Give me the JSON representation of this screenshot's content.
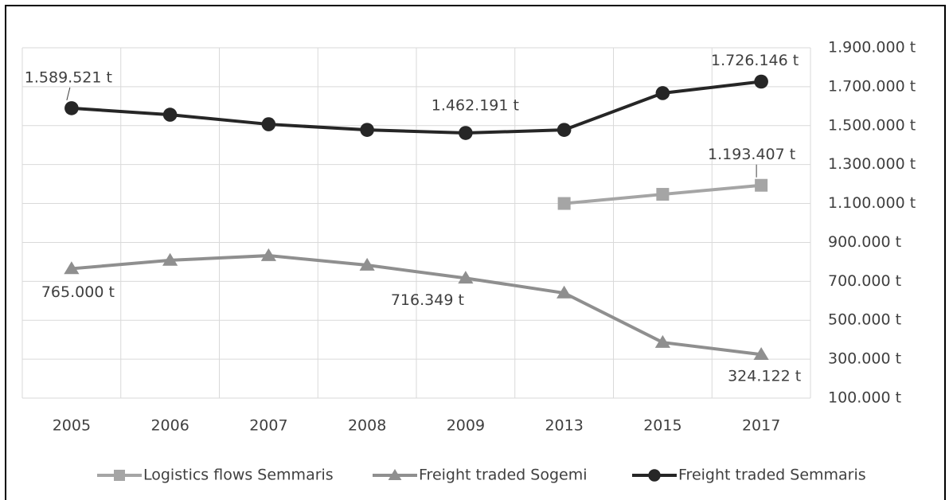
{
  "chart_data": {
    "type": "line",
    "categories": [
      "2005",
      "2006",
      "2007",
      "2008",
      "2009",
      "2013",
      "2015",
      "2017"
    ],
    "series": [
      {
        "name": "Logistics flows Semmaris",
        "color": "#a5a5a5",
        "marker": "square",
        "values": [
          null,
          null,
          null,
          null,
          null,
          1100000,
          1147000,
          1193407
        ],
        "value_labels": [
          null,
          null,
          null,
          null,
          null,
          null,
          null,
          "1.193.407 t"
        ]
      },
      {
        "name": "Freight traded Sogemi",
        "color": "#8f8f8f",
        "marker": "triangle",
        "values": [
          765000,
          808000,
          832000,
          783000,
          716349,
          640000,
          386000,
          324122
        ],
        "value_labels": [
          "765.000 t",
          null,
          null,
          null,
          "716.349 t",
          null,
          null,
          "324.122 t"
        ]
      },
      {
        "name": "Freight traded Semmaris",
        "color": "#262626",
        "marker": "circle",
        "values": [
          1589521,
          1556000,
          1507000,
          1478000,
          1462191,
          1478000,
          1667000,
          1726146
        ],
        "value_labels": [
          "1.589.521 t",
          null,
          null,
          null,
          "1.462.191 t",
          null,
          null,
          "1.726.146 t"
        ]
      }
    ],
    "ylim": [
      100000,
      1900000
    ],
    "yaxis_side": "right",
    "yticks": [
      {
        "value": 100000,
        "label": "100.000 t"
      },
      {
        "value": 300000,
        "label": "300.000 t"
      },
      {
        "value": 500000,
        "label": "500.000 t"
      },
      {
        "value": 700000,
        "label": "700.000 t"
      },
      {
        "value": 900000,
        "label": "900.000 t"
      },
      {
        "value": 1100000,
        "label": "1.100.000 t"
      },
      {
        "value": 1300000,
        "label": "1.300.000 t"
      },
      {
        "value": 1500000,
        "label": "1.500.000 t"
      },
      {
        "value": 1700000,
        "label": "1.700.000 t"
      },
      {
        "value": 1900000,
        "label": "1.900.000 t"
      }
    ],
    "grid": true,
    "legend": "bottom"
  }
}
